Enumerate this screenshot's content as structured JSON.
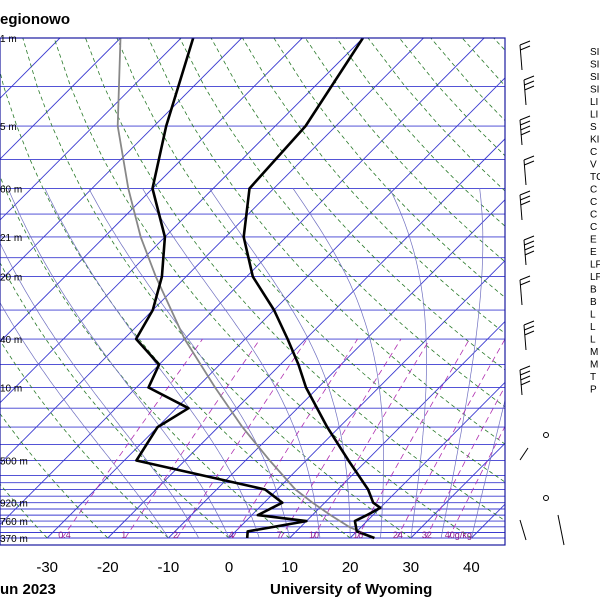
{
  "station_title": "egionowo",
  "footer_left": "un 2023",
  "footer_right": "University of Wyoming",
  "colors": {
    "isobar": "#3b3bd0",
    "isotherm": "#3b3bd0",
    "dry_adiabat": "#2a7a2a",
    "moist_adiabat": "#6f6fc0",
    "mixing_ratio": "#b030b0",
    "sounding": "#000000",
    "parcel": "#888888",
    "frame": "#1a1aa0"
  },
  "pressure_labels": [
    {
      "text": "370 m",
      "p": 1000
    },
    {
      "text": "760 m",
      "p": 925
    },
    {
      "text": "920 m",
      "p": 850
    },
    {
      "text": "500 m",
      "p": 700
    },
    {
      "text": "10 m",
      "p": 500
    },
    {
      "text": "40 m",
      "p": 400
    },
    {
      "text": "20 m",
      "p": 300
    },
    {
      "text": "21 m",
      "p": 250
    },
    {
      "text": "60 m",
      "p": 200
    },
    {
      "text": "5 m",
      "p": 150
    },
    {
      "text": "1 m",
      "p": 100
    }
  ],
  "mixing_ratio_labels": [
    "0.4",
    "1",
    "2",
    "4",
    "7",
    "10",
    "16",
    "24",
    "32",
    "40g/kg"
  ],
  "index_labels": [
    "SI",
    "SI",
    "SI",
    "SI",
    "LI",
    "LI",
    "S",
    "KI",
    "C",
    "V",
    "TC",
    "C",
    "C",
    "C",
    "C",
    "E",
    "E",
    "LF",
    "LF",
    "B",
    "B",
    "L",
    "L",
    "L",
    "M",
    "M",
    "T",
    "P"
  ],
  "chart_data": {
    "type": "skew-t",
    "title": "egionowo",
    "xlabel": "",
    "ylabel": "",
    "x_ticks": [
      -30,
      -20,
      -10,
      0,
      10,
      20,
      30,
      40
    ],
    "xlim": [
      -40,
      45
    ],
    "ylim_hpa": [
      1000,
      100
    ],
    "pressure_levels": [
      1000,
      925,
      850,
      700,
      500,
      400,
      300,
      250,
      200,
      150,
      100
    ],
    "mixing_ratio_lines_gkg": [
      0.4,
      1,
      2,
      4,
      7,
      10,
      16,
      24,
      32,
      40
    ],
    "temperature_profile": [
      {
        "p": 1000,
        "t": 24
      },
      {
        "p": 970,
        "t": 20
      },
      {
        "p": 925,
        "t": 18
      },
      {
        "p": 900,
        "t": 19
      },
      {
        "p": 870,
        "t": 20
      },
      {
        "p": 850,
        "t": 18
      },
      {
        "p": 800,
        "t": 15
      },
      {
        "p": 700,
        "t": 7
      },
      {
        "p": 600,
        "t": -2
      },
      {
        "p": 500,
        "t": -12
      },
      {
        "p": 450,
        "t": -17
      },
      {
        "p": 400,
        "t": -23
      },
      {
        "p": 350,
        "t": -30
      },
      {
        "p": 300,
        "t": -39
      },
      {
        "p": 250,
        "t": -47
      },
      {
        "p": 200,
        "t": -54
      },
      {
        "p": 150,
        "t": -55
      },
      {
        "p": 100,
        "t": -60
      }
    ],
    "dewpoint_profile": [
      {
        "p": 1000,
        "t": 3
      },
      {
        "p": 970,
        "t": 2
      },
      {
        "p": 925,
        "t": 10
      },
      {
        "p": 900,
        "t": 1
      },
      {
        "p": 850,
        "t": 3
      },
      {
        "p": 800,
        "t": -2
      },
      {
        "p": 700,
        "t": -28
      },
      {
        "p": 600,
        "t": -30
      },
      {
        "p": 550,
        "t": -28
      },
      {
        "p": 500,
        "t": -38
      },
      {
        "p": 450,
        "t": -40
      },
      {
        "p": 400,
        "t": -48
      },
      {
        "p": 350,
        "t": -50
      },
      {
        "p": 300,
        "t": -54
      },
      {
        "p": 250,
        "t": -60
      },
      {
        "p": 200,
        "t": -70
      },
      {
        "p": 150,
        "t": -78
      },
      {
        "p": 100,
        "t": -88
      }
    ],
    "parcel_profile": [
      {
        "p": 1000,
        "t": 24
      },
      {
        "p": 950,
        "t": 18
      },
      {
        "p": 900,
        "t": 13
      },
      {
        "p": 850,
        "t": 8
      },
      {
        "p": 800,
        "t": 3
      },
      {
        "p": 700,
        "t": -6
      },
      {
        "p": 600,
        "t": -16
      },
      {
        "p": 500,
        "t": -27
      },
      {
        "p": 400,
        "t": -40
      },
      {
        "p": 300,
        "t": -55
      },
      {
        "p": 250,
        "t": -64
      },
      {
        "p": 200,
        "t": -74
      },
      {
        "p": 150,
        "t": -86
      },
      {
        "p": 100,
        "t": -100
      }
    ]
  }
}
